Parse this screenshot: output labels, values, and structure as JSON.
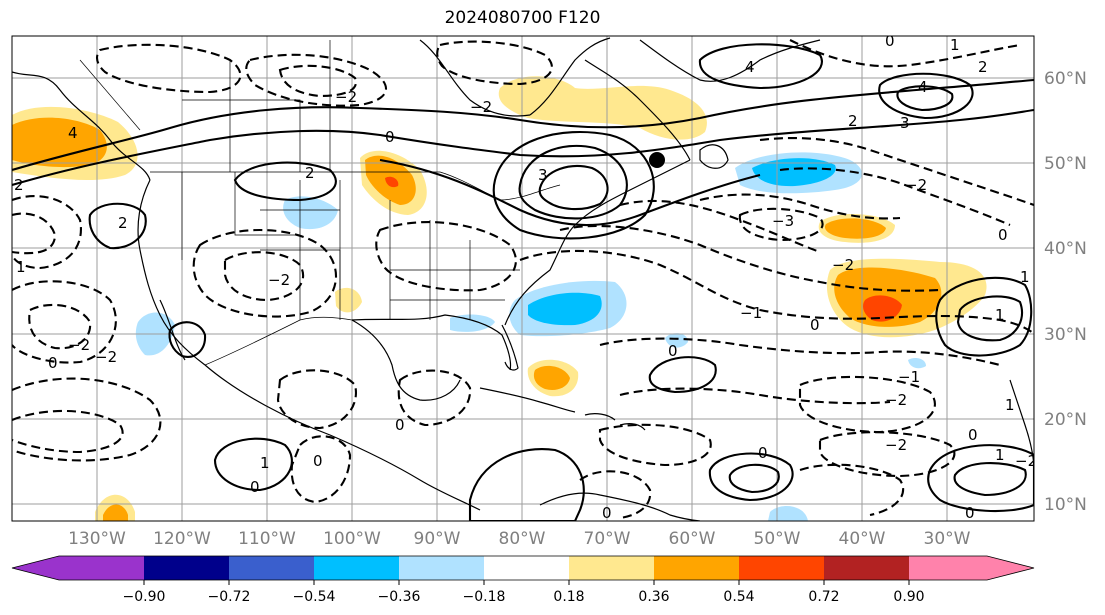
{
  "title": "2024080700 F120",
  "longitude_labels": [
    "130°W",
    "120°W",
    "110°W",
    "100°W",
    "90°W",
    "80°W",
    "70°W",
    "60°W",
    "50°W",
    "40°W",
    "30°W"
  ],
  "latitude_labels": [
    "60°N",
    "50°N",
    "40°N",
    "30°N",
    "20°N",
    "10°N"
  ],
  "colorbar": {
    "tick_labels": [
      "−0.90",
      "−0.72",
      "−0.54",
      "−0.36",
      "−0.18",
      "0.18",
      "0.36",
      "0.54",
      "0.72",
      "0.90"
    ],
    "colors": [
      "#9a33cc",
      "#00008b",
      "#3a5fcd",
      "#00bfff",
      "#b0e2ff",
      "#ffffff",
      "#ffe88f",
      "#ffa500",
      "#ff4500",
      "#b22222",
      "#ff82ab"
    ]
  },
  "contour_labels": [
    "0",
    "2",
    "1",
    "4",
    "3",
    "−1",
    "−2",
    "−3"
  ],
  "marker": "black-dot",
  "colors": {
    "grid": "#9e9e9e",
    "axis_text": "#808080",
    "coastline": "#000000"
  }
}
